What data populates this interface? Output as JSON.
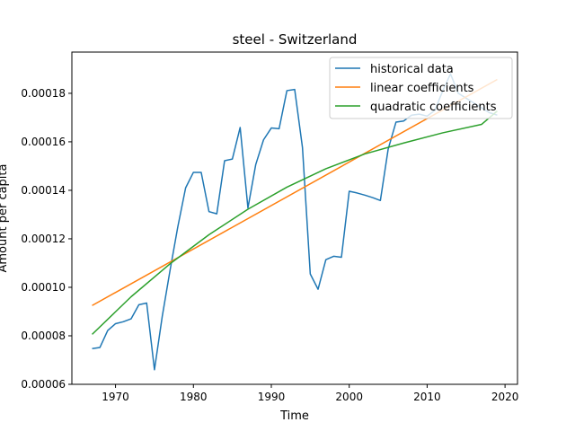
{
  "chart_data": {
    "type": "line",
    "title": "steel - Switzerland",
    "xlabel": "Time",
    "ylabel": "Amount per capita",
    "xlim": [
      1964.4,
      2021.6
    ],
    "ylim": [
      6e-05,
      0.000197
    ],
    "xticks": [
      1970,
      1980,
      1990,
      2000,
      2010,
      2020
    ],
    "xtick_labels": [
      "1970",
      "1980",
      "1990",
      "2000",
      "2010",
      "2020"
    ],
    "yticks": [
      6e-05,
      8e-05,
      0.0001,
      0.00012,
      0.00014,
      0.00016,
      0.00018
    ],
    "ytick_labels": [
      "0.00006",
      "0.00008",
      "0.00010",
      "0.00012",
      "0.00014",
      "0.00016",
      "0.00018"
    ],
    "grid": false,
    "legend_position": "top-right",
    "series": [
      {
        "name": "historical data",
        "color": "#1f77b4",
        "x": [
          1967,
          1968,
          1969,
          1970,
          1971,
          1972,
          1973,
          1974,
          1975,
          1976,
          1977,
          1978,
          1979,
          1980,
          1981,
          1982,
          1983,
          1984,
          1985,
          1986,
          1987,
          1988,
          1989,
          1990,
          1991,
          1992,
          1993,
          1994,
          1995,
          1996,
          1997,
          1998,
          1999,
          2000,
          2001,
          2002,
          2003,
          2004,
          2005,
          2006,
          2007,
          2008,
          2009,
          2010,
          2011,
          2012,
          2013,
          2014,
          2015,
          2016,
          2017,
          2018,
          2019
        ],
        "y": [
          7.47e-05,
          7.52e-05,
          8.22e-05,
          8.5e-05,
          8.58e-05,
          8.7e-05,
          9.28e-05,
          9.35e-05,
          6.6e-05,
          8.8e-05,
          0.000107,
          0.000125,
          0.000141,
          0.0001474,
          0.0001474,
          0.0001312,
          0.0001303,
          0.0001522,
          0.0001529,
          0.0001659,
          0.0001327,
          0.0001506,
          0.0001608,
          0.0001657,
          0.0001654,
          0.0001811,
          0.0001816,
          0.0001576,
          0.0001055,
          9.92e-05,
          0.0001114,
          0.0001128,
          0.0001124,
          0.0001396,
          0.0001389,
          0.000138,
          0.000137,
          0.0001358,
          0.000157,
          0.0001681,
          0.0001686,
          0.000171,
          0.0001714,
          0.0001706,
          0.000173,
          0.000181,
          0.000188,
          0.00018,
          0.000178,
          0.000176,
          0.000174,
          0.000172,
          0.000171
        ]
      },
      {
        "name": "linear coefficients",
        "color": "#ff7f0e",
        "x": [
          1967,
          2019
        ],
        "y": [
          9.25e-05,
          0.0001857
        ]
      },
      {
        "name": "quadratic coefficients",
        "color": "#2ca02c",
        "x": [
          1967,
          1972,
          1977,
          1982,
          1987,
          1992,
          1997,
          2002,
          2007,
          2012,
          2017,
          2019
        ],
        "y": [
          8.06e-05,
          9.61e-05,
          0.0001097,
          0.0001217,
          0.0001322,
          0.0001413,
          0.0001489,
          0.000155,
          0.0001595,
          0.0001637,
          0.0001672,
          0.0001727
        ]
      }
    ]
  }
}
